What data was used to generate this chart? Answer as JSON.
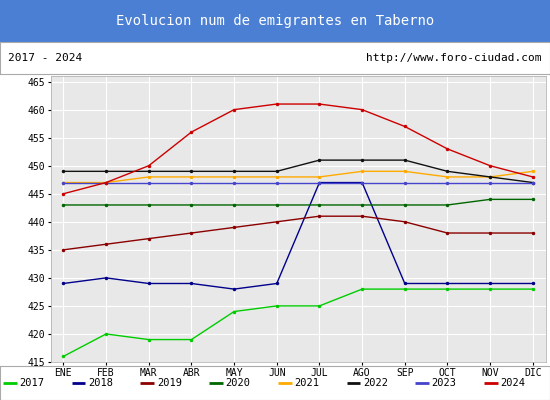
{
  "title": "Evolucion num de emigrantes en Taberno",
  "title_bgcolor": "#4a7fd4",
  "title_color": "white",
  "subtitle_left": "2017 - 2024",
  "subtitle_right": "http://www.foro-ciudad.com",
  "months": [
    "ENE",
    "FEB",
    "MAR",
    "ABR",
    "MAY",
    "JUN",
    "JUL",
    "AGO",
    "SEP",
    "OCT",
    "NOV",
    "DIC"
  ],
  "ylim": [
    415,
    466
  ],
  "yticks": [
    415,
    420,
    425,
    430,
    435,
    440,
    445,
    450,
    455,
    460,
    465
  ],
  "series": {
    "2017": {
      "color": "#00cc00",
      "data": [
        416,
        420,
        419,
        419,
        424,
        425,
        425,
        428,
        428,
        428,
        428,
        428
      ]
    },
    "2018": {
      "color": "#00008b",
      "data": [
        429,
        430,
        429,
        429,
        428,
        429,
        447,
        447,
        429,
        429,
        429,
        429
      ]
    },
    "2019": {
      "color": "#8b0000",
      "data": [
        435,
        436,
        437,
        438,
        439,
        440,
        441,
        441,
        440,
        438,
        438,
        438
      ]
    },
    "2020": {
      "color": "#006600",
      "data": [
        443,
        443,
        443,
        443,
        443,
        443,
        443,
        443,
        443,
        443,
        444,
        444
      ]
    },
    "2021": {
      "color": "#ffaa00",
      "data": [
        447,
        447,
        448,
        448,
        448,
        448,
        448,
        449,
        449,
        448,
        448,
        449
      ]
    },
    "2022": {
      "color": "#111111",
      "data": [
        449,
        449,
        449,
        449,
        449,
        449,
        451,
        451,
        451,
        449,
        448,
        447
      ]
    },
    "2023": {
      "color": "#4444cc",
      "data": [
        447,
        447,
        447,
        447,
        447,
        447,
        447,
        447,
        447,
        447,
        447,
        447
      ]
    },
    "2024": {
      "color": "#cc0000",
      "data": [
        445,
        447,
        450,
        456,
        460,
        461,
        461,
        460,
        457,
        453,
        450,
        448
      ]
    }
  },
  "legend_order": [
    "2017",
    "2018",
    "2019",
    "2020",
    "2021",
    "2022",
    "2023",
    "2024"
  ],
  "bg_color": "#ffffff",
  "plot_bg_color": "#e8e8e8",
  "grid_color": "#ffffff",
  "border_color": "#aaaaaa"
}
